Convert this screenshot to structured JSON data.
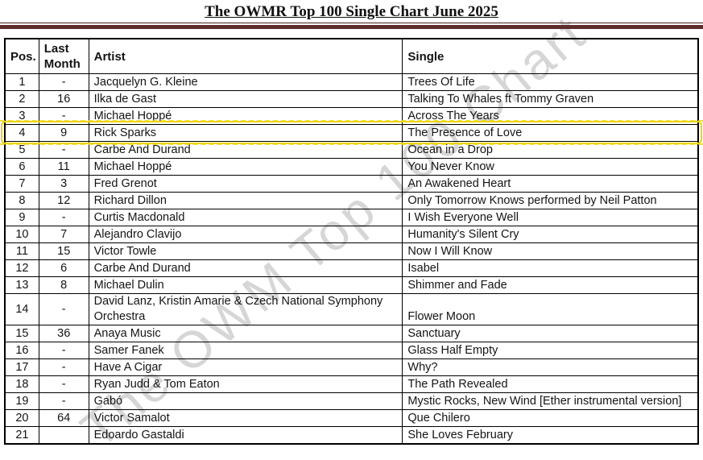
{
  "page": {
    "title": "The OWMR Top 100 Single Chart June 2025"
  },
  "watermark": {
    "text": "The OWM Top 100 Chart",
    "color": "#b5b5b5"
  },
  "colors": {
    "rule_thin": "#4a2020",
    "rule_thick": "#5e2c2c",
    "table_border": "#000000",
    "highlight": "#eed406"
  },
  "table": {
    "headers": {
      "pos": "Pos.",
      "last_month": "Last Month",
      "artist": "Artist",
      "single": "Single"
    },
    "highlight_pos": "4",
    "rows": [
      {
        "pos": "1",
        "last_month": "-",
        "artist": "Jacquelyn G. Kleine",
        "single": "Trees Of Life"
      },
      {
        "pos": "2",
        "last_month": "16",
        "artist": "Ilka de Gast",
        "single": "Talking To Whales ft Tommy Graven"
      },
      {
        "pos": "3",
        "last_month": "-",
        "artist": "Michael Hoppé",
        "single": "Across The Years"
      },
      {
        "pos": "4",
        "last_month": "9",
        "artist": "Rick Sparks",
        "single": "The Presence of Love"
      },
      {
        "pos": "5",
        "last_month": "-",
        "artist": "Carbe And Durand",
        "single": "Ocean in a Drop"
      },
      {
        "pos": "6",
        "last_month": "11",
        "artist": "Michael Hoppé",
        "single": "You Never Know"
      },
      {
        "pos": "7",
        "last_month": "3",
        "artist": "Fred Grenot",
        "single": "An Awakened Heart"
      },
      {
        "pos": "8",
        "last_month": "12",
        "artist": "Richard Dillon",
        "single": "Only Tomorrow Knows performed by Neil Patton"
      },
      {
        "pos": "9",
        "last_month": "-",
        "artist": "Curtis Macdonald",
        "single": "I Wish Everyone Well"
      },
      {
        "pos": "10",
        "last_month": "7",
        "artist": "Alejandro Clavijo",
        "single": "Humanity's Silent Cry"
      },
      {
        "pos": "11",
        "last_month": "15",
        "artist": "Victor Towle",
        "single": "Now I Will Know"
      },
      {
        "pos": "12",
        "last_month": "6",
        "artist": "Carbe And Durand",
        "single": "Isabel"
      },
      {
        "pos": "13",
        "last_month": "8",
        "artist": "Michael Dulin",
        "single": "Shimmer and Fade"
      },
      {
        "pos": "14",
        "last_month": "-",
        "artist": "David Lanz, Kristin Amarie & Czech National Symphony Orchestra",
        "single": "Flower Moon",
        "single_valign": "bottom"
      },
      {
        "pos": "15",
        "last_month": "36",
        "artist": "Anaya Music",
        "single": "Sanctuary"
      },
      {
        "pos": "16",
        "last_month": "-",
        "artist": "Samer Fanek",
        "single": "Glass Half Empty"
      },
      {
        "pos": "17",
        "last_month": "-",
        "artist": "Have A Cigar",
        "single": "Why?"
      },
      {
        "pos": "18",
        "last_month": "-",
        "artist": "Ryan Judd & Tom Eaton",
        "single": "The Path Revealed"
      },
      {
        "pos": "19",
        "last_month": "-",
        "artist": "Gabó",
        "single": "Mystic Rocks, New Wind [Ether instrumental version]",
        "artist_valign": "bottom"
      },
      {
        "pos": "20",
        "last_month": "64",
        "artist": "Victor Samalot",
        "single": "Que Chilero"
      },
      {
        "pos": "21",
        "last_month": "",
        "artist": "Edoardo Gastaldi",
        "single": "She Loves February"
      }
    ]
  }
}
